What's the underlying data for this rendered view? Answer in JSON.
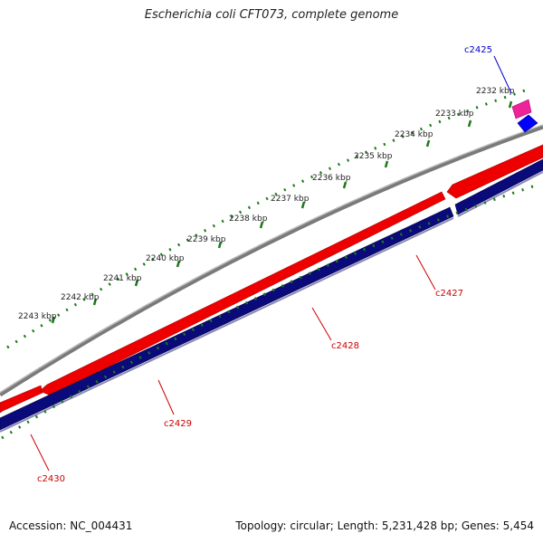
{
  "title": "Escherichia coli CFT073, complete genome",
  "footer": {
    "accession": "Accession: NC_004431",
    "summary": "Topology: circular; Length: 5,231,428 bp; Genes: 5,454"
  },
  "kbp_ticks": [
    {
      "label": "2232 kbp"
    },
    {
      "label": "2233 kbp"
    },
    {
      "label": "2234 kbp"
    },
    {
      "label": "2235 kbp"
    },
    {
      "label": "2236 kbp"
    },
    {
      "label": "2237 kbp"
    },
    {
      "label": "2238 kbp"
    },
    {
      "label": "2239 kbp"
    },
    {
      "label": "2240 kbp"
    },
    {
      "label": "2241 kbp"
    },
    {
      "label": "2242 kbp"
    },
    {
      "label": "2243 kbp"
    }
  ],
  "gene_labels": [
    {
      "name": "c2425",
      "strand": "forward"
    },
    {
      "name": "c2427",
      "strand": "reverse"
    },
    {
      "name": "c2428",
      "strand": "reverse"
    },
    {
      "name": "c2429",
      "strand": "reverse"
    },
    {
      "name": "c2430",
      "strand": "reverse"
    }
  ],
  "colors": {
    "backbone": "#7a7a7a",
    "forward_strand": "#ee0000",
    "reverse_strand": "#0a0a7a",
    "small_forward": "#ee2299",
    "small_reverse": "#0000ff",
    "ticks": "#1a7a1a",
    "label_forward": "#0000cc",
    "label_reverse": "#cc0000"
  }
}
